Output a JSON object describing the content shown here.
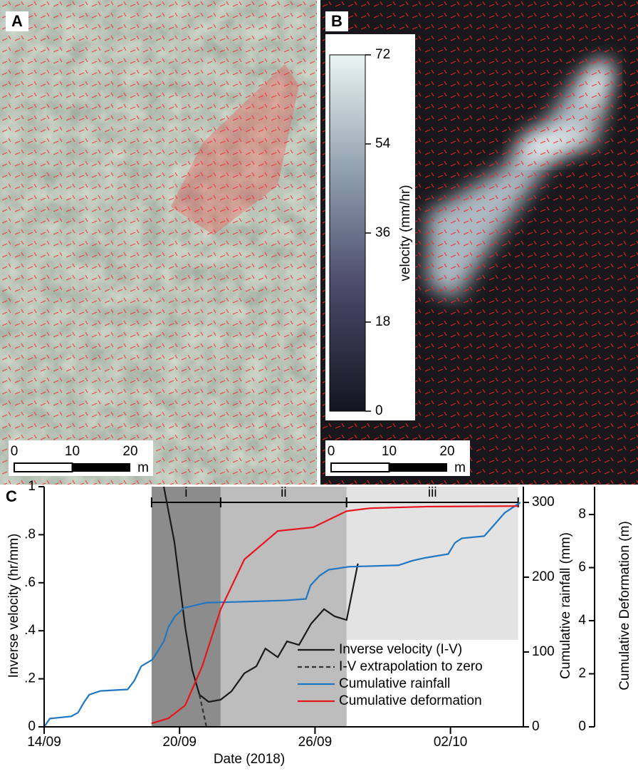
{
  "panel_a": {
    "label": "A",
    "scale_bar": {
      "ticks": [
        0,
        10,
        20
      ],
      "lim": [
        0,
        20
      ],
      "unit": "m"
    }
  },
  "panel_b": {
    "label": "B",
    "colorbar": {
      "label": "velocity (mm/hr)",
      "lim": [
        0,
        72
      ],
      "ticks": [
        0,
        18,
        36,
        54,
        72
      ]
    },
    "scale_bar": {
      "ticks": [
        0,
        10,
        20
      ],
      "lim": [
        0,
        20
      ],
      "unit": "m"
    }
  },
  "chart_data": {
    "type": "line",
    "panel_label": "C",
    "x_label": "Date (2018)",
    "y_label": "Inverse velocity (hr/mm)",
    "y2_label": "Cumulative rainfall (mm)",
    "y3_label": "Cumulative Deformation (m)",
    "xlim": [
      14,
      35.23
    ],
    "xticks": [
      {
        "value": 14,
        "label": "14/09"
      },
      {
        "value": 20,
        "label": "20/09"
      },
      {
        "value": 26,
        "label": "26/09"
      },
      {
        "value": 32,
        "label": "02/10"
      }
    ],
    "ylim": [
      0,
      1
    ],
    "yticks": [
      0,
      {
        "value": 0.2,
        "label": ".2"
      },
      {
        "value": 0.4,
        "label": ".4"
      },
      {
        "value": 0.6,
        "label": ".6"
      },
      {
        "value": 0.8,
        "label": ".8"
      },
      1
    ],
    "y2lim": [
      0,
      321
    ],
    "y2ticks": [
      0,
      100,
      200,
      300
    ],
    "y3lim": [
      0,
      9.05
    ],
    "y3ticks": [
      0,
      2,
      4,
      6,
      8
    ],
    "phases": [
      {
        "label": "i",
        "start": 18.76,
        "end": 21.82,
        "color": "#8c8c8c"
      },
      {
        "label": "ii",
        "start": 21.82,
        "end": 27.4,
        "color": "#bdbdbd"
      },
      {
        "label": "iii",
        "start": 27.4,
        "end": 35.0,
        "color": "#e3e3e3"
      }
    ],
    "series": [
      {
        "name": "Inverse velocity (I-V)",
        "color": "#1a1a1a",
        "axis": "y",
        "x": [
          19.3,
          19.77,
          20.25,
          20.56,
          20.88,
          21.29,
          21.82,
          22.3,
          22.87,
          23.4,
          23.8,
          24.35,
          24.76,
          25.29,
          25.83,
          26.4,
          26.87,
          27.4,
          27.9
        ],
        "values": [
          1.0,
          0.77,
          0.415,
          0.237,
          0.134,
          0.104,
          0.113,
          0.148,
          0.223,
          0.252,
          0.326,
          0.29,
          0.356,
          0.341,
          0.43,
          0.49,
          0.46,
          0.445,
          0.68
        ]
      },
      {
        "name": "I-V extrapolation to zero",
        "color": "#333333",
        "axis": "y",
        "dash": true,
        "x": [
          20.88,
          21.19
        ],
        "values": [
          0.134,
          0
        ]
      },
      {
        "name": "Cumulative rainfall",
        "color": "#1f77c4",
        "axis": "y2",
        "x": [
          14.0,
          14.25,
          15.2,
          15.5,
          15.77,
          16.0,
          16.5,
          17.7,
          18.0,
          18.3,
          18.8,
          19.3,
          19.5,
          19.8,
          20.2,
          21.2,
          22.5,
          24.7,
          25.6,
          25.8,
          26.2,
          26.6,
          27.5,
          29.7,
          30.3,
          30.9,
          31.9,
          32.2,
          32.5,
          33.5,
          34.4,
          35.1
        ],
        "values": [
          0,
          11,
          14,
          19,
          33,
          43,
          48,
          50,
          62,
          81,
          90,
          114,
          133,
          148,
          159,
          166,
          167,
          169,
          171,
          189,
          202,
          210,
          214,
          216,
          222,
          226,
          231,
          246,
          252,
          255,
          286,
          300
        ]
      },
      {
        "name": "Cumulative deformation",
        "color": "#e8141c",
        "axis": "y3",
        "x": [
          18.76,
          19.5,
          20.25,
          21.0,
          21.82,
          22.87,
          24.35,
          25.92,
          27.4,
          28.45,
          30.97,
          35.0
        ],
        "values": [
          0.13,
          0.32,
          0.81,
          2.28,
          4.43,
          6.31,
          7.38,
          7.52,
          8.13,
          8.24,
          8.3,
          8.32
        ]
      }
    ]
  }
}
